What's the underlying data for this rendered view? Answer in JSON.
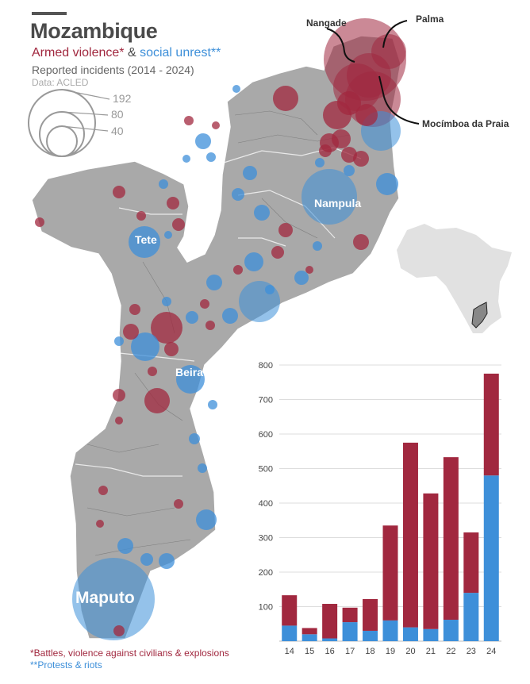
{
  "header": {
    "title": "Mozambique",
    "subtitle_red": "Armed violence*",
    "subtitle_amp": "&",
    "subtitle_blue": "social unrest**",
    "subtitle_2": "Reported incidents (2014 - 2024)",
    "source": "Data: ACLED"
  },
  "size_legend": {
    "values": [
      "192",
      "80",
      "40"
    ]
  },
  "map_labels": {
    "nangade": "Nangade",
    "palma": "Palma",
    "mocimboa": "Mocímboa da Praia",
    "nampula": "Nampula",
    "tete": "Tete",
    "beira": "Beira",
    "maputo": "Maputo"
  },
  "footnotes": {
    "armed": "*Battles, violence against civilians & explosions",
    "unrest": "**Protests & riots"
  },
  "colors": {
    "armed": "#a1283f",
    "unrest": "#3d8fd9",
    "land": "#a9a9a9",
    "text": "#4a4a4a"
  },
  "chart_data": {
    "type": "bar",
    "stacked": true,
    "categories": [
      "14",
      "15",
      "16",
      "17",
      "18",
      "19",
      "20",
      "21",
      "22",
      "23",
      "24"
    ],
    "series": [
      {
        "name": "social unrest**",
        "color": "#3d8fd9",
        "values": [
          45,
          20,
          8,
          55,
          30,
          60,
          40,
          35,
          62,
          140,
          480
        ]
      },
      {
        "name": "Armed violence*",
        "color": "#a1283f",
        "values": [
          88,
          18,
          100,
          42,
          92,
          275,
          535,
          393,
          471,
          175,
          295
        ]
      }
    ],
    "ylim": [
      0,
      800
    ],
    "yticks": [
      100,
      200,
      300,
      400,
      500,
      600,
      700,
      800
    ],
    "grid": true
  }
}
